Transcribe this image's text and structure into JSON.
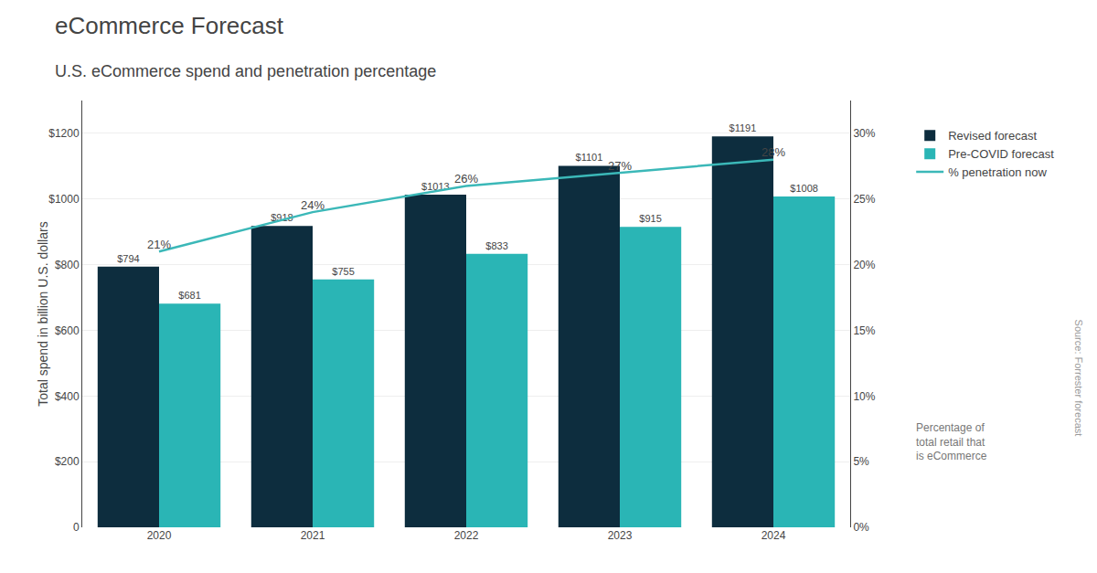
{
  "chart_data": {
    "type": "bar",
    "title": "eCommerce Forecast",
    "subtitle": "U.S. eCommerce spend and penetration percentage",
    "ylabel": "Total spend in billion U.S. dollars",
    "y2label": "Percentage of\ntotal retail that\nis eCommerce",
    "annotations": [
      "Source: Forrester forecast"
    ],
    "categories": [
      "2020",
      "2021",
      "2022",
      "2023",
      "2024"
    ],
    "series": [
      {
        "name": "Revised forecast",
        "type": "bar",
        "color": "#0d2d3e",
        "values": [
          794,
          918,
          1013,
          1101,
          1191
        ],
        "value_labels": [
          "$794",
          "$918",
          "$1013",
          "$1101",
          "$1191"
        ]
      },
      {
        "name": "Pre-COVID forecast",
        "type": "bar",
        "color": "#2ab5b5",
        "values": [
          681,
          755,
          833,
          915,
          1008
        ],
        "value_labels": [
          "$681",
          "$755",
          "$833",
          "$915",
          "$1008"
        ]
      },
      {
        "name": "% penetration now",
        "type": "line",
        "axis": "y2",
        "color": "#3bb8b8",
        "values": [
          21,
          24,
          26,
          27,
          28
        ],
        "value_labels": [
          "21%",
          "24%",
          "26%",
          "27%",
          "28%"
        ]
      }
    ],
    "ylim": [
      0,
      1300
    ],
    "yticks": [
      0,
      {
        "value": 200,
        "label": "$200"
      },
      {
        "value": 400,
        "label": "$400"
      },
      {
        "value": 600,
        "label": "$600"
      },
      {
        "value": 800,
        "label": "$800"
      },
      {
        "value": 1000,
        "label": "$1000"
      },
      {
        "value": 1200,
        "label": "$1200"
      }
    ],
    "y2lim": [
      0,
      32.5
    ],
    "y2ticks": [
      {
        "value": 0,
        "label": "0%"
      },
      {
        "value": 5,
        "label": "5%"
      },
      {
        "value": 10,
        "label": "10%"
      },
      {
        "value": 15,
        "label": "15%"
      },
      {
        "value": 20,
        "label": "20%"
      },
      {
        "value": 25,
        "label": "25%"
      },
      {
        "value": 30,
        "label": "30%"
      }
    ],
    "grid": true,
    "legend": "right",
    "data_labels": true
  }
}
